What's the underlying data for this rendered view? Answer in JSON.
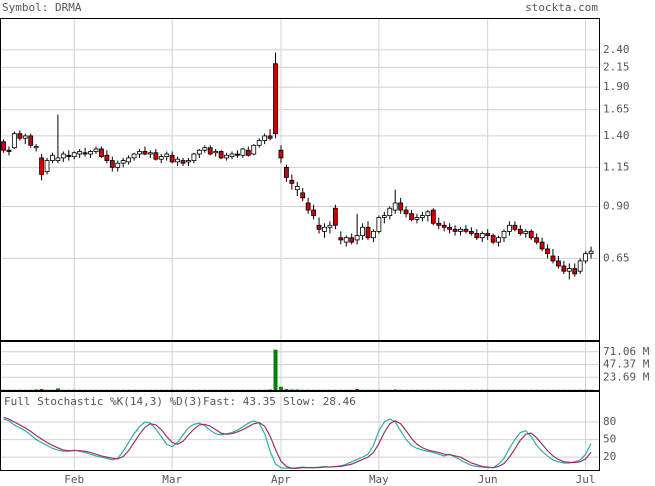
{
  "header": {
    "symbol": "Symbol: DRMA",
    "site": "stockta.com"
  },
  "chart_data": [
    {
      "type": "candlestick",
      "categories": [
        null,
        null,
        null,
        null,
        null,
        null,
        null,
        null,
        null,
        null,
        null,
        null,
        null,
        "Feb",
        null,
        null,
        null,
        null,
        null,
        null,
        null,
        null,
        null,
        null,
        null,
        null,
        null,
        null,
        null,
        null,
        null,
        "Mar",
        null,
        null,
        null,
        null,
        null,
        null,
        null,
        null,
        null,
        null,
        null,
        null,
        null,
        null,
        null,
        null,
        null,
        null,
        null,
        "Apr",
        null,
        null,
        null,
        null,
        null,
        null,
        null,
        null,
        null,
        null,
        null,
        null,
        null,
        null,
        null,
        null,
        null,
        "May",
        null,
        null,
        null,
        null,
        null,
        null,
        null,
        null,
        null,
        null,
        null,
        null,
        null,
        null,
        null,
        null,
        null,
        null,
        null,
        "Jun",
        null,
        null,
        null,
        null,
        null,
        null,
        null,
        null,
        null,
        null,
        null,
        null,
        null,
        null,
        null,
        null,
        null,
        "Jul",
        null
      ],
      "ohlc": [
        [
          1.35,
          1.37,
          1.26,
          1.28
        ],
        [
          1.28,
          1.31,
          1.24,
          1.27
        ],
        [
          1.3,
          1.44,
          1.29,
          1.42
        ],
        [
          1.42,
          1.45,
          1.36,
          1.38
        ],
        [
          1.38,
          1.42,
          1.33,
          1.4
        ],
        [
          1.4,
          1.42,
          1.3,
          1.32
        ],
        [
          1.3,
          1.33,
          1.27,
          1.31
        ],
        [
          1.22,
          1.25,
          1.06,
          1.1
        ],
        [
          1.12,
          1.22,
          1.1,
          1.2
        ],
        [
          1.2,
          1.26,
          1.18,
          1.24
        ],
        [
          1.2,
          1.6,
          1.18,
          1.22
        ],
        [
          1.22,
          1.27,
          1.19,
          1.25
        ],
        [
          1.24,
          1.28,
          1.2,
          1.23
        ],
        [
          1.23,
          1.27,
          1.21,
          1.26
        ],
        [
          1.25,
          1.29,
          1.22,
          1.27
        ],
        [
          1.26,
          1.3,
          1.23,
          1.25
        ],
        [
          1.25,
          1.28,
          1.22,
          1.27
        ],
        [
          1.27,
          1.31,
          1.25,
          1.29
        ],
        [
          1.29,
          1.31,
          1.22,
          1.23
        ],
        [
          1.24,
          1.28,
          1.18,
          1.2
        ],
        [
          1.2,
          1.23,
          1.12,
          1.15
        ],
        [
          1.15,
          1.2,
          1.12,
          1.18
        ],
        [
          1.18,
          1.22,
          1.15,
          1.2
        ],
        [
          1.19,
          1.24,
          1.17,
          1.22
        ],
        [
          1.22,
          1.26,
          1.2,
          1.25
        ],
        [
          1.25,
          1.29,
          1.22,
          1.27
        ],
        [
          1.27,
          1.31,
          1.24,
          1.25
        ],
        [
          1.25,
          1.28,
          1.22,
          1.26
        ],
        [
          1.26,
          1.29,
          1.2,
          1.21
        ],
        [
          1.21,
          1.25,
          1.18,
          1.23
        ],
        [
          1.23,
          1.27,
          1.2,
          1.25
        ],
        [
          1.24,
          1.27,
          1.18,
          1.19
        ],
        [
          1.19,
          1.23,
          1.16,
          1.21
        ],
        [
          1.2,
          1.22,
          1.16,
          1.18
        ],
        [
          1.19,
          1.22,
          1.16,
          1.2
        ],
        [
          1.2,
          1.26,
          1.18,
          1.25
        ],
        [
          1.25,
          1.29,
          1.22,
          1.28
        ],
        [
          1.28,
          1.32,
          1.26,
          1.3
        ],
        [
          1.3,
          1.32,
          1.24,
          1.25
        ],
        [
          1.26,
          1.29,
          1.23,
          1.27
        ],
        [
          1.27,
          1.28,
          1.21,
          1.22
        ],
        [
          1.22,
          1.26,
          1.2,
          1.24
        ],
        [
          1.23,
          1.27,
          1.21,
          1.25
        ],
        [
          1.25,
          1.28,
          1.22,
          1.24
        ],
        [
          1.24,
          1.3,
          1.22,
          1.29
        ],
        [
          1.28,
          1.31,
          1.23,
          1.24
        ],
        [
          1.25,
          1.33,
          1.24,
          1.32
        ],
        [
          1.32,
          1.38,
          1.3,
          1.36
        ],
        [
          1.36,
          1.42,
          1.33,
          1.4
        ],
        [
          1.4,
          1.46,
          1.36,
          1.38
        ],
        [
          2.2,
          2.36,
          1.38,
          1.42
        ],
        [
          1.28,
          1.32,
          1.18,
          1.22
        ],
        [
          1.15,
          1.17,
          1.05,
          1.08
        ],
        [
          1.06,
          1.1,
          1.0,
          1.04
        ],
        [
          1.0,
          1.05,
          0.96,
          1.02
        ],
        [
          0.98,
          1.01,
          0.93,
          0.95
        ],
        [
          0.92,
          0.95,
          0.86,
          0.88
        ],
        [
          0.88,
          0.91,
          0.83,
          0.85
        ],
        [
          0.8,
          0.84,
          0.76,
          0.78
        ],
        [
          0.77,
          0.81,
          0.74,
          0.79
        ],
        [
          0.79,
          0.82,
          0.76,
          0.8
        ],
        [
          0.89,
          0.91,
          0.78,
          0.8
        ],
        [
          0.74,
          0.77,
          0.71,
          0.73
        ],
        [
          0.72,
          0.75,
          0.7,
          0.74
        ],
        [
          0.74,
          0.76,
          0.71,
          0.72
        ],
        [
          0.73,
          0.86,
          0.71,
          0.75
        ],
        [
          0.75,
          0.81,
          0.73,
          0.79
        ],
        [
          0.79,
          0.82,
          0.73,
          0.74
        ],
        [
          0.74,
          0.78,
          0.72,
          0.77
        ],
        [
          0.77,
          0.85,
          0.76,
          0.84
        ],
        [
          0.84,
          0.87,
          0.81,
          0.85
        ],
        [
          0.85,
          0.9,
          0.83,
          0.89
        ],
        [
          0.88,
          1.0,
          0.86,
          0.92
        ],
        [
          0.92,
          0.95,
          0.86,
          0.88
        ],
        [
          0.88,
          0.9,
          0.84,
          0.86
        ],
        [
          0.86,
          0.88,
          0.82,
          0.83
        ],
        [
          0.83,
          0.86,
          0.81,
          0.84
        ],
        [
          0.84,
          0.87,
          0.82,
          0.85
        ],
        [
          0.85,
          0.88,
          0.82,
          0.87
        ],
        [
          0.88,
          0.89,
          0.8,
          0.81
        ],
        [
          0.81,
          0.84,
          0.78,
          0.8
        ],
        [
          0.8,
          0.82,
          0.77,
          0.79
        ],
        [
          0.79,
          0.81,
          0.76,
          0.78
        ],
        [
          0.78,
          0.8,
          0.75,
          0.77
        ],
        [
          0.77,
          0.79,
          0.75,
          0.78
        ],
        [
          0.78,
          0.8,
          0.76,
          0.77
        ],
        [
          0.77,
          0.79,
          0.75,
          0.76
        ],
        [
          0.76,
          0.78,
          0.73,
          0.74
        ],
        [
          0.74,
          0.77,
          0.72,
          0.76
        ],
        [
          0.76,
          0.78,
          0.73,
          0.75
        ],
        [
          0.75,
          0.76,
          0.71,
          0.72
        ],
        [
          0.72,
          0.75,
          0.7,
          0.74
        ],
        [
          0.74,
          0.78,
          0.72,
          0.77
        ],
        [
          0.77,
          0.82,
          0.75,
          0.8
        ],
        [
          0.8,
          0.82,
          0.77,
          0.78
        ],
        [
          0.78,
          0.8,
          0.75,
          0.76
        ],
        [
          0.76,
          0.78,
          0.74,
          0.77
        ],
        [
          0.77,
          0.78,
          0.73,
          0.74
        ],
        [
          0.74,
          0.76,
          0.71,
          0.72
        ],
        [
          0.72,
          0.74,
          0.68,
          0.69
        ],
        [
          0.69,
          0.71,
          0.65,
          0.67
        ],
        [
          0.66,
          0.69,
          0.63,
          0.64
        ],
        [
          0.64,
          0.66,
          0.61,
          0.62
        ],
        [
          0.62,
          0.64,
          0.59,
          0.6
        ],
        [
          0.6,
          0.63,
          0.57,
          0.61
        ],
        [
          0.61,
          0.63,
          0.58,
          0.59
        ],
        [
          0.6,
          0.65,
          0.59,
          0.64
        ],
        [
          0.64,
          0.68,
          0.63,
          0.67
        ],
        [
          0.67,
          0.7,
          0.65,
          0.68
        ]
      ],
      "ylim": [
        0.39,
        2.93
      ],
      "log": true,
      "yticks": [
        {
          "value": 0.65,
          "label": "0.65"
        },
        {
          "value": 0.9,
          "label": "0.90"
        },
        {
          "value": 1.15,
          "label": "1.15"
        },
        {
          "value": 1.4,
          "label": "1.40"
        },
        {
          "value": 1.65,
          "label": "1.65"
        },
        {
          "value": 1.9,
          "label": "1.90"
        },
        {
          "value": 2.15,
          "label": "2.15"
        },
        {
          "value": 2.4,
          "label": "2.40"
        }
      ],
      "grid": true,
      "up_color": "#ffffff",
      "down_color": "#cc0000"
    },
    {
      "type": "bar",
      "values": [
        0.5,
        0.5,
        0.5,
        0.5,
        0.5,
        0.5,
        1,
        2,
        0.5,
        0.5,
        3,
        0.5,
        0.5,
        0.5,
        0.5,
        0.5,
        0.5,
        0.5,
        0.5,
        0.5,
        0.5,
        0.5,
        0.5,
        0.5,
        0.5,
        0.5,
        0.5,
        0.5,
        0.5,
        0.5,
        0.5,
        0.5,
        0.5,
        0.5,
        0.5,
        0.5,
        0.5,
        0.5,
        0.5,
        0.5,
        0.5,
        0.5,
        0.5,
        0.5,
        0.5,
        0.5,
        0.5,
        0.5,
        0.5,
        1,
        75,
        6,
        2,
        1,
        1,
        0.5,
        0.5,
        0.5,
        0.5,
        0.5,
        0.5,
        0.5,
        0.5,
        0.5,
        0.5,
        2,
        0.5,
        0.5,
        0.5,
        0.5,
        0.5,
        0.5,
        1,
        0.5,
        0.5,
        0.5,
        0.5,
        0.5,
        0.5,
        0.5,
        0.5,
        0.5,
        0.5,
        0.5,
        0.5,
        0.5,
        0.5,
        0.5,
        0.5,
        0.5,
        0.5,
        0.5,
        0.5,
        0.5,
        0.5,
        0.5,
        0.5,
        0.5,
        0.5,
        0.5,
        0.5,
        0.5,
        0.5,
        0.5,
        0.5,
        0.5,
        0.5,
        0.5,
        0.5
      ],
      "color": "#008000",
      "ylim": [
        0,
        91.1
      ],
      "yticks": [
        {
          "value": 23.69,
          "label": "23.69 M"
        },
        {
          "value": 47.37,
          "label": "47.37 M"
        },
        {
          "value": 71.06,
          "label": "71.06 M"
        }
      ]
    },
    {
      "type": "line",
      "title": "Full Stochastic %K(14,3) %D(3)",
      "annotations": [
        "Fast: 43.35",
        "Slow: 28.46"
      ],
      "series": [
        {
          "color": "#33aaaa",
          "values": [
            85,
            82,
            75,
            70,
            65,
            58,
            50,
            45,
            40,
            35,
            32,
            30,
            30,
            32,
            30,
            28,
            25,
            22,
            20,
            18,
            15,
            18,
            30,
            45,
            60,
            72,
            80,
            78,
            68,
            55,
            42,
            38,
            45,
            58,
            70,
            76,
            78,
            74,
            66,
            60,
            58,
            60,
            62,
            66,
            72,
            78,
            82,
            78,
            60,
            30,
            8,
            2,
            1,
            1,
            2,
            3,
            2,
            2,
            3,
            4,
            3,
            4,
            5,
            8,
            12,
            16,
            20,
            25,
            40,
            65,
            80,
            85,
            80,
            65,
            50,
            40,
            35,
            32,
            30,
            28,
            25,
            22,
            25,
            20,
            15,
            10,
            6,
            4,
            3,
            2,
            2,
            8,
            18,
            35,
            50,
            62,
            65,
            55,
            40,
            30,
            22,
            15,
            12,
            10,
            10,
            12,
            15,
            25,
            43.35
          ]
        },
        {
          "color": "#993366",
          "values": [
            88,
            85,
            80,
            75,
            70,
            64,
            57,
            51,
            45,
            40,
            36,
            32,
            31,
            31,
            31,
            30,
            28,
            25,
            22,
            20,
            18,
            17,
            21,
            31,
            45,
            59,
            71,
            77,
            75,
            67,
            55,
            45,
            42,
            47,
            58,
            68,
            75,
            76,
            73,
            67,
            61,
            59,
            60,
            63,
            67,
            72,
            77,
            79,
            73,
            56,
            33,
            13,
            4,
            1,
            1,
            2,
            2,
            2,
            2,
            3,
            3,
            4,
            4,
            6,
            8,
            12,
            16,
            20,
            28,
            43,
            62,
            77,
            82,
            77,
            65,
            52,
            42,
            36,
            32,
            30,
            28,
            25,
            24,
            22,
            20,
            15,
            10,
            7,
            4,
            3,
            2,
            4,
            9,
            20,
            34,
            49,
            59,
            61,
            53,
            42,
            31,
            22,
            16,
            12,
            11,
            11,
            12,
            17,
            28.46
          ]
        }
      ],
      "ylim": [
        -2,
        133
      ],
      "yticks": [
        20,
        50,
        80
      ]
    }
  ]
}
